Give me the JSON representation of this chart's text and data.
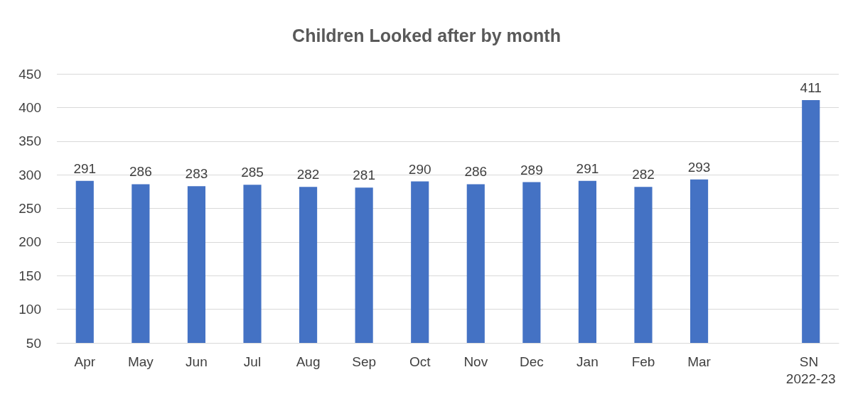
{
  "chart_data": {
    "type": "bar",
    "title": "Children Looked after by month",
    "categories": [
      "Apr",
      "May",
      "Jun",
      "Jul",
      "Aug",
      "Sep",
      "Oct",
      "Nov",
      "Dec",
      "Jan",
      "Feb",
      "Mar",
      null,
      "SN 2022-23"
    ],
    "values": [
      291,
      286,
      283,
      285,
      282,
      281,
      290,
      286,
      289,
      291,
      282,
      293,
      null,
      411
    ],
    "color": "#4472c4",
    "ylim": [
      50,
      450
    ],
    "yticks": [
      50,
      100,
      150,
      200,
      250,
      300,
      350,
      400,
      450
    ],
    "grid": "y",
    "data_labels": true
  }
}
